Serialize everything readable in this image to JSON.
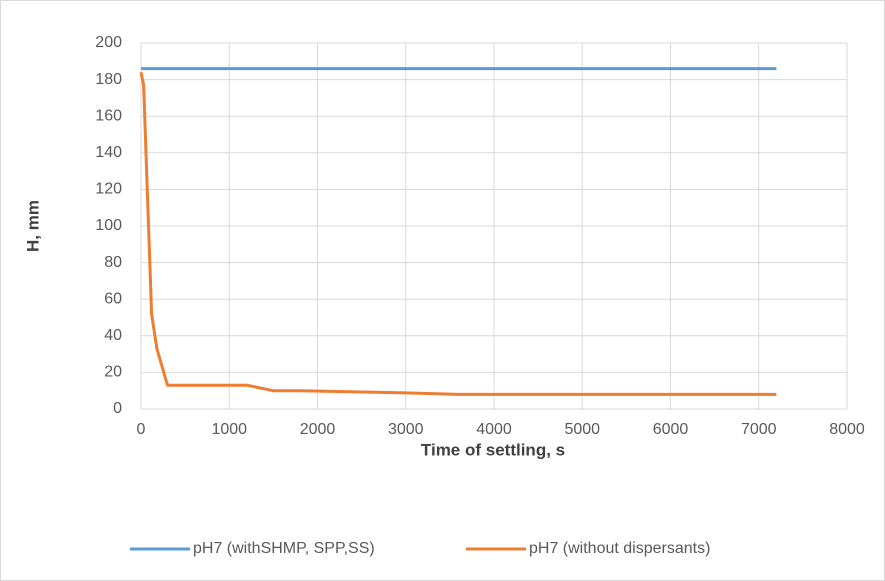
{
  "chart_data": {
    "type": "line",
    "xlabel": "Time of settling, s",
    "ylabel": "H, mm",
    "series": [
      {
        "name": "pH7 (withSHMP, SPP,SS)",
        "color": "#5b9bd5",
        "x": [
          0,
          7200
        ],
        "values": [
          186,
          186
        ]
      },
      {
        "name": "pH7 (without dispersants)",
        "color": "#ed7d31",
        "x": [
          0,
          30,
          120,
          180,
          300,
          1200,
          1500,
          1800,
          3000,
          3600,
          7200
        ],
        "values": [
          184,
          177,
          52,
          33,
          13,
          13,
          10,
          10,
          8.8,
          8,
          8
        ]
      }
    ],
    "xlim": [
      0,
      8000
    ],
    "xticks": [
      0,
      1000,
      2000,
      3000,
      4000,
      5000,
      6000,
      7000,
      8000
    ],
    "ylim": [
      0,
      200
    ],
    "yticks": [
      0,
      20,
      40,
      60,
      80,
      100,
      120,
      140,
      160,
      180,
      200
    ],
    "grid": true,
    "legend": "bottom"
  }
}
